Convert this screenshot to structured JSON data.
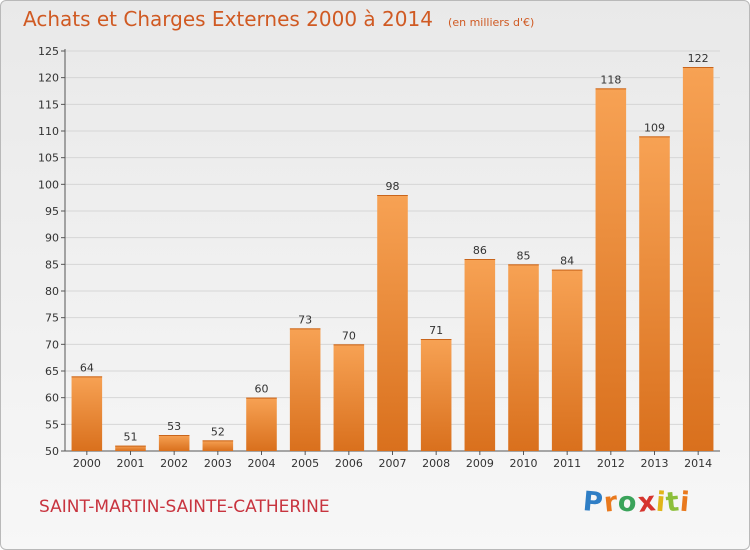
{
  "title": "Achats et Charges Externes 2000 à 2014",
  "unit": "(en milliers d'€)",
  "place": "SAINT-MARTIN-SAINTE-CATHERINE",
  "logo": {
    "letters": [
      "P",
      "r",
      "o",
      "x",
      "i",
      "t",
      "i"
    ],
    "colors": [
      "#2f7ec5",
      "#e9791d",
      "#3aa35a",
      "#d6342d",
      "#e0b51a",
      "#8cbf3a",
      "#e9791d"
    ]
  },
  "colors": {
    "bar_top": "#f7a254",
    "bar_bottom": "#d9701d",
    "title": "#d05a23",
    "place": "#c8343f"
  },
  "chart_data": {
    "type": "bar",
    "categories": [
      "2000",
      "2001",
      "2002",
      "2003",
      "2004",
      "2005",
      "2006",
      "2007",
      "2008",
      "2009",
      "2010",
      "2011",
      "2012",
      "2013",
      "2014"
    ],
    "values": [
      64,
      51,
      53,
      52,
      60,
      73,
      70,
      98,
      71,
      86,
      85,
      84,
      118,
      109,
      122
    ],
    "ylim": [
      50,
      125
    ],
    "yticks": [
      50,
      55,
      60,
      65,
      70,
      75,
      80,
      85,
      90,
      95,
      100,
      105,
      110,
      115,
      120,
      125
    ],
    "grid": true,
    "data_labels": true
  }
}
